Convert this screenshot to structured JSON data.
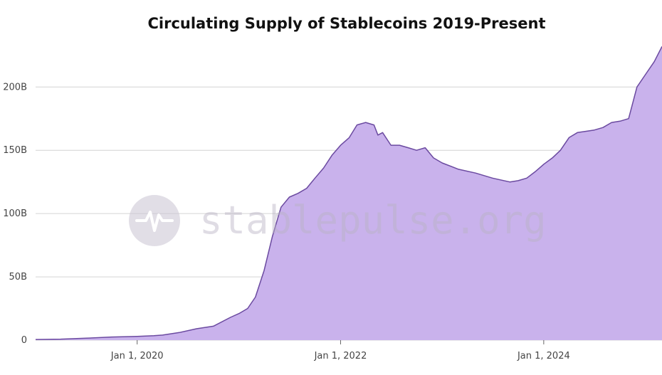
{
  "chart_data": {
    "type": "area",
    "title": "Circulating Supply of Stablecoins 2019-Present",
    "xlabel": "",
    "ylabel": "",
    "x_axis": {
      "start": "2019-01-01",
      "end": "2025-03-01",
      "ticks": [
        {
          "value": "2020-01-01",
          "label": "Jan 1, 2020"
        },
        {
          "value": "2022-01-01",
          "label": "Jan 1, 2022"
        },
        {
          "value": "2024-01-01",
          "label": "Jan 1, 2024"
        }
      ]
    },
    "y_axis": {
      "ylim": [
        0,
        235
      ],
      "ticks": [
        {
          "value": 0,
          "label": "0"
        },
        {
          "value": 50,
          "label": "50B"
        },
        {
          "value": 100,
          "label": "100B"
        },
        {
          "value": 150,
          "label": "150B"
        },
        {
          "value": 200,
          "label": "200B"
        }
      ]
    },
    "grid": true,
    "colors": {
      "fill": "#c9b2ec",
      "line": "#6b4aa0"
    },
    "series": [
      {
        "x": [
          "2019-01-01",
          "2019-04-01",
          "2019-07-01",
          "2019-10-01",
          "2020-01-01",
          "2020-03-01",
          "2020-04-01",
          "2020-06-01",
          "2020-08-01",
          "2020-10-01",
          "2020-12-01",
          "2021-01-01",
          "2021-02-01",
          "2021-03-01",
          "2021-04-01",
          "2021-05-01",
          "2021-06-01",
          "2021-07-01",
          "2021-08-01",
          "2021-09-01",
          "2021-10-01",
          "2021-11-01",
          "2021-12-01",
          "2022-01-01",
          "2022-02-01",
          "2022-03-01",
          "2022-04-01",
          "2022-05-01",
          "2022-05-15",
          "2022-06-01",
          "2022-07-01",
          "2022-08-01",
          "2022-09-01",
          "2022-10-01",
          "2022-11-01",
          "2022-12-01",
          "2023-01-01",
          "2023-03-01",
          "2023-05-01",
          "2023-07-01",
          "2023-09-01",
          "2023-10-01",
          "2023-11-01",
          "2023-12-01",
          "2024-01-01",
          "2024-02-01",
          "2024-03-01",
          "2024-04-01",
          "2024-05-01",
          "2024-06-01",
          "2024-07-01",
          "2024-08-01",
          "2024-09-01",
          "2024-10-01",
          "2024-11-01",
          "2024-12-01",
          "2025-01-01",
          "2025-02-01",
          "2025-03-01"
        ],
        "values": [
          0.5,
          0.8,
          1.5,
          2.5,
          3,
          3.5,
          4,
          6,
          9,
          11,
          18,
          21,
          25,
          34,
          55,
          82,
          105,
          113,
          116,
          120,
          128,
          136,
          146,
          154,
          160,
          170,
          172,
          170,
          162,
          164,
          154,
          154,
          152,
          150,
          152,
          144,
          140,
          135,
          132,
          128,
          125,
          126,
          128,
          133,
          139,
          144,
          150,
          160,
          164,
          165,
          166,
          168,
          172,
          173,
          175,
          200,
          210,
          220,
          232
        ]
      }
    ]
  },
  "watermark": {
    "text": "stablepulse.org",
    "icon": "pulse-icon"
  }
}
